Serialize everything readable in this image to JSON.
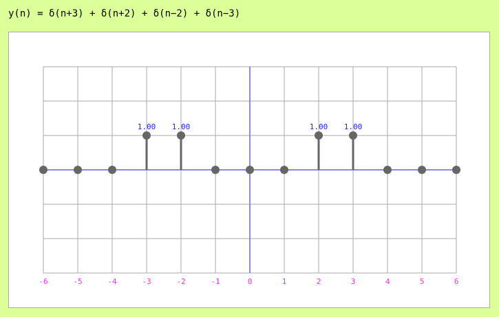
{
  "header": {
    "formula": "y(n) = δ(n+3) + δ(n+2) + δ(n−2) + δ(n−3)"
  },
  "colors": {
    "background": "#ddff99",
    "panel": "#ffffff",
    "grid": "#aaaaaa",
    "axis": "#8888ee",
    "stem": "#666666",
    "tick_label": "#ee33ee",
    "value_label": "#2222ee"
  },
  "chart_data": {
    "type": "stem",
    "title": "",
    "xlabel": "",
    "ylabel": "",
    "xlim": [
      -6,
      6
    ],
    "ylim": [
      -3,
      3
    ],
    "grid": true,
    "x": [
      -6,
      -5,
      -4,
      -3,
      -2,
      -1,
      0,
      1,
      2,
      3,
      4,
      5,
      6
    ],
    "y": [
      0,
      0,
      0,
      1,
      1,
      0,
      0,
      0,
      1,
      1,
      0,
      0,
      0
    ],
    "x_tick_labels": [
      "-6",
      "-5",
      "-4",
      "-3",
      "-2",
      "-1",
      "0",
      "1",
      "2",
      "3",
      "4",
      "5",
      "6"
    ],
    "value_labels": [
      {
        "x": -3,
        "text": "1.00"
      },
      {
        "x": -2,
        "text": "1.00"
      },
      {
        "x": 2,
        "text": "1.00"
      },
      {
        "x": 3,
        "text": "1.00"
      }
    ]
  }
}
